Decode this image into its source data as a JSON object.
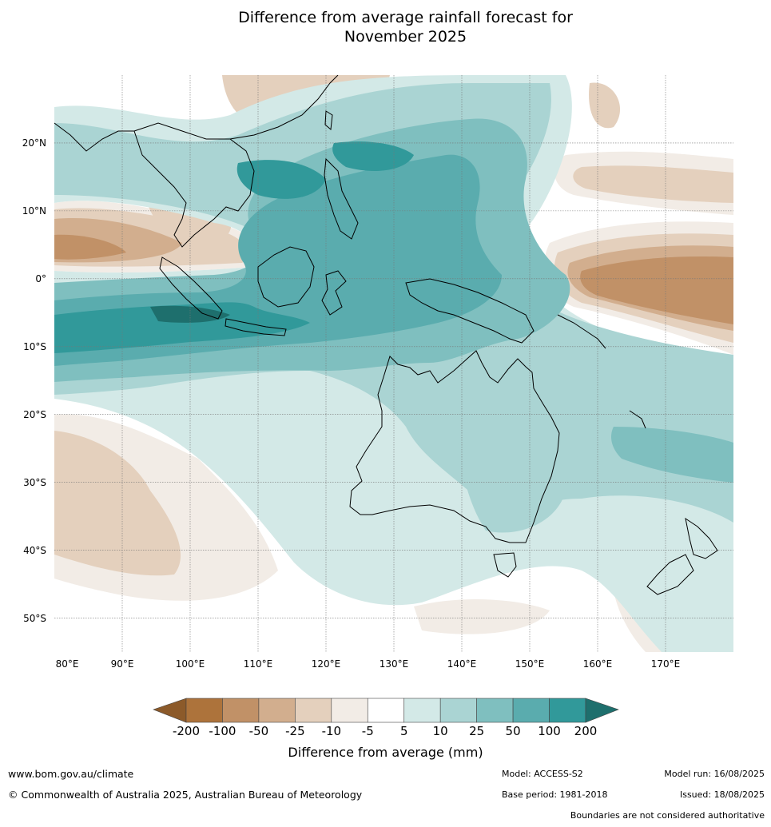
{
  "title_line1": "Difference from average rainfall forecast for",
  "title_line2": "November 2025",
  "map": {
    "lon_range": [
      80,
      180
    ],
    "lat_range": [
      -55,
      30
    ],
    "lat_labels": [
      "20°N",
      "10°N",
      "0°",
      "10°S",
      "20°S",
      "30°S",
      "40°S",
      "50°S"
    ],
    "lon_labels": [
      "80°E",
      "90°E",
      "100°E",
      "110°E",
      "120°E",
      "130°E",
      "140°E",
      "150°E",
      "160°E",
      "170°E"
    ]
  },
  "legend": {
    "title": "Difference from average (mm)",
    "labels": [
      "-200",
      "-100",
      "-50",
      "-25",
      "-10",
      "-5",
      "5",
      "10",
      "25",
      "50",
      "100",
      "200"
    ],
    "colors": {
      "below_m200": "#8c5a2a",
      "m200_m100": "#ad733b",
      "m100_m50": "#c19167",
      "m50_m25": "#d2ae8e",
      "m25_m10": "#e4d0bd",
      "m10_m5": "#f2ece6",
      "m5_5": "#ffffff",
      "p5_10": "#d3e9e7",
      "p10_25": "#aad4d3",
      "p25_50": "#7fbfbf",
      "p50_100": "#5aacae",
      "p100_200": "#31999a",
      "above_200": "#1e6f6d"
    }
  },
  "footer": {
    "website": "www.bom.gov.au/climate",
    "copyright": "© Commonwealth of Australia 2025, Australian Bureau of Meteorology",
    "model": "Model: ACCESS-S2",
    "base_period": "Base period: 1981-2018",
    "model_run": "Model run: 16/08/2025",
    "issued": "Issued: 18/08/2025",
    "disclaimer": "Boundaries are not considered authoritative"
  }
}
